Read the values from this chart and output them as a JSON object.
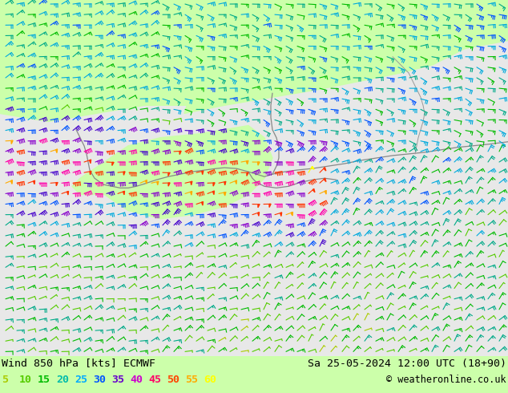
{
  "title_left": "Wind 850 hPa [kts] ECMWF",
  "title_right": "Sa 25-05-2024 12:00 UTC (18+90)",
  "copyright": "© weatheronline.co.uk",
  "legend_values": [
    5,
    10,
    15,
    20,
    25,
    30,
    35,
    40,
    45,
    50,
    55,
    60
  ],
  "legend_colors": [
    "#aacc00",
    "#55cc00",
    "#00bb00",
    "#00bbaa",
    "#00aaff",
    "#0055ff",
    "#6600cc",
    "#cc00cc",
    "#ff0066",
    "#ff4400",
    "#ffaa00",
    "#ffff00"
  ],
  "land_color": "#ccffaa",
  "sea_color": "#dddddd",
  "fig_bg": "#ccffaa",
  "bottom_bg": "#ccffaa",
  "speed_color_map": {
    "5": "#aacc00",
    "10": "#55cc00",
    "15": "#00bb00",
    "20": "#00aa88",
    "25": "#00aadd",
    "30": "#0055ff",
    "35": "#4400cc",
    "40": "#8800cc",
    "45": "#ff00aa",
    "50": "#ff3300",
    "55": "#ffaa00",
    "60": "#ffff00"
  }
}
